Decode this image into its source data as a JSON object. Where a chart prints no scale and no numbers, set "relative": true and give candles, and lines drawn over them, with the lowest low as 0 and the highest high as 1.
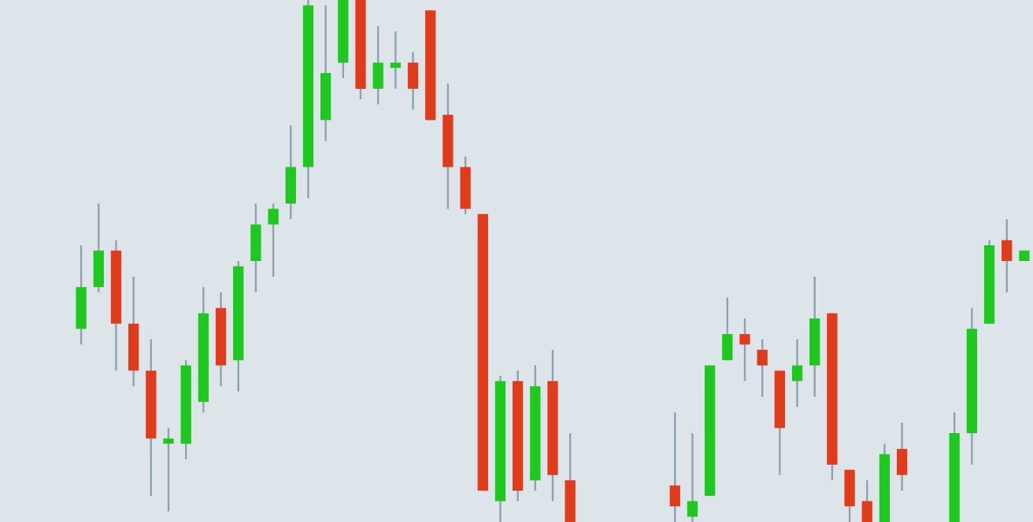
{
  "chart_data": {
    "type": "candlestick",
    "relative": true,
    "categories": [
      null,
      null,
      null,
      null,
      null,
      null,
      null,
      null,
      null,
      null,
      null,
      null,
      null,
      null,
      null,
      null,
      null,
      null,
      null,
      null,
      null,
      null,
      null,
      null,
      null,
      null,
      null,
      null,
      null,
      null,
      null,
      null,
      null,
      null,
      null,
      null,
      null,
      null,
      null,
      null,
      null,
      null,
      null,
      null,
      null,
      null,
      null,
      null,
      null,
      null,
      null,
      null,
      null,
      null,
      null
    ],
    "ohlc": [
      [
        0.37,
        0.53,
        0.34,
        0.45
      ],
      [
        0.45,
        0.61,
        0.44,
        0.52
      ],
      [
        0.52,
        0.54,
        0.29,
        0.38
      ],
      [
        0.38,
        0.47,
        0.26,
        0.29
      ],
      [
        0.29,
        0.35,
        0.05,
        0.16
      ],
      [
        0.15,
        0.18,
        0.02,
        0.16
      ],
      [
        0.15,
        0.31,
        0.12,
        0.3
      ],
      [
        0.23,
        0.45,
        0.21,
        0.4
      ],
      [
        0.41,
        0.44,
        0.26,
        0.3
      ],
      [
        0.31,
        0.5,
        0.25,
        0.49
      ],
      [
        0.5,
        0.61,
        0.44,
        0.57
      ],
      [
        0.57,
        0.61,
        0.47,
        0.6
      ],
      [
        0.61,
        0.76,
        0.58,
        0.68
      ],
      [
        0.68,
        1,
        0.62,
        0.99
      ],
      [
        0.77,
        0.99,
        0.73,
        0.86
      ],
      [
        0.88,
        1,
        0.85,
        1
      ],
      [
        1,
        1,
        0.81,
        0.83
      ],
      [
        0.83,
        0.95,
        0.8,
        0.88
      ],
      [
        0.87,
        0.94,
        0.83,
        0.88
      ],
      [
        0.88,
        0.9,
        0.79,
        0.83
      ],
      [
        0.98,
        0.98,
        0.77,
        0.77
      ],
      [
        0.78,
        0.84,
        0.6,
        0.68
      ],
      [
        0.68,
        0.7,
        0.59,
        0.6
      ],
      [
        0.59,
        0.59,
        0.06,
        0.06
      ],
      [
        0.04,
        0.28,
        0,
        0.27
      ],
      [
        0.27,
        0.29,
        0.04,
        0.06
      ],
      [
        0.08,
        0.3,
        0.06,
        0.26
      ],
      [
        0.27,
        0.33,
        0.04,
        0.09
      ],
      [
        0.08,
        0.17,
        0,
        0
      ],
      null,
      null,
      null,
      null,
      null,
      [
        0.07,
        0.21,
        0,
        0.03
      ],
      [
        0.01,
        0.17,
        0,
        0.04
      ],
      [
        0.05,
        0.3,
        0.05,
        0.3
      ],
      [
        0.31,
        0.43,
        0.31,
        0.36
      ],
      [
        0.36,
        0.39,
        0.27,
        0.34
      ],
      [
        0.33,
        0.35,
        0.24,
        0.3
      ],
      [
        0.29,
        0.29,
        0.09,
        0.18
      ],
      [
        0.27,
        0.35,
        0.22,
        0.3
      ],
      [
        0.3,
        0.47,
        0.24,
        0.39
      ],
      [
        0.4,
        0.4,
        0.08,
        0.11
      ],
      [
        0.1,
        0.1,
        0,
        0.03
      ],
      [
        0.04,
        0.08,
        0,
        0
      ],
      [
        0,
        0.15,
        0,
        0.13
      ],
      [
        0.14,
        0.19,
        0.06,
        0.09
      ],
      null,
      null,
      [
        0,
        0.21,
        0,
        0.17
      ],
      [
        0.17,
        0.41,
        0.11,
        0.37
      ],
      [
        0.38,
        0.54,
        0.38,
        0.53
      ],
      [
        0.54,
        0.58,
        0.44,
        0.5
      ],
      [
        0.5,
        0.52,
        0.5,
        0.52
      ]
    ],
    "colors": [
      "#1ec81e",
      "#1ec81e",
      "#e03c1c",
      "#e03c1c",
      "#e03c1c",
      "#1ec81e",
      "#1ec81e",
      "#1ec81e",
      "#e03c1c",
      "#1ec81e",
      "#1ec81e",
      "#1ec81e",
      "#1ec81e",
      "#1ec81e",
      "#1ec81e",
      "#1ec81e",
      "#e03c1c",
      "#1ec81e",
      "#1ec81e",
      "#e03c1c",
      "#e03c1c",
      "#e03c1c",
      "#e03c1c",
      "#e03c1c",
      "#1ec81e",
      "#e03c1c",
      "#1ec81e",
      "#e03c1c",
      "#e03c1c",
      null,
      null,
      null,
      null,
      null,
      "#e03c1c",
      "#1ec81e",
      "#1ec81e",
      "#1ec81e",
      "#e03c1c",
      "#e03c1c",
      "#e03c1c",
      "#1ec81e",
      "#1ec81e",
      "#e03c1c",
      "#e03c1c",
      "#e03c1c",
      "#1ec81e",
      "#e03c1c",
      null,
      null,
      "#1ec81e",
      "#1ec81e",
      "#1ec81e",
      "#e03c1c",
      "#1ec81e"
    ]
  }
}
